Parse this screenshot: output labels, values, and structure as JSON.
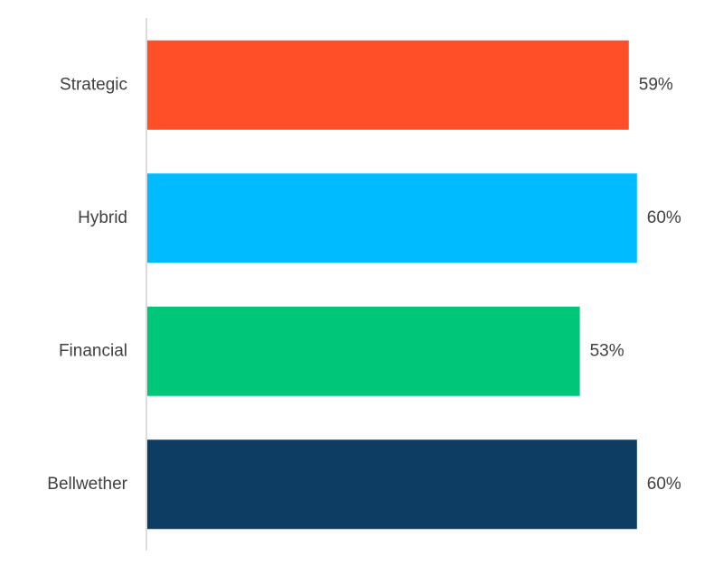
{
  "chart_data": {
    "type": "bar",
    "orientation": "horizontal",
    "categories": [
      "Strategic",
      "Hybrid",
      "Financial",
      "Bellwether"
    ],
    "values": [
      59,
      60,
      53,
      60
    ],
    "value_labels": [
      "59%",
      "60%",
      "53%",
      "60%"
    ],
    "colors": [
      "#ff4f28",
      "#00bbff",
      "#00c67a",
      "#0d3d63"
    ]
  }
}
